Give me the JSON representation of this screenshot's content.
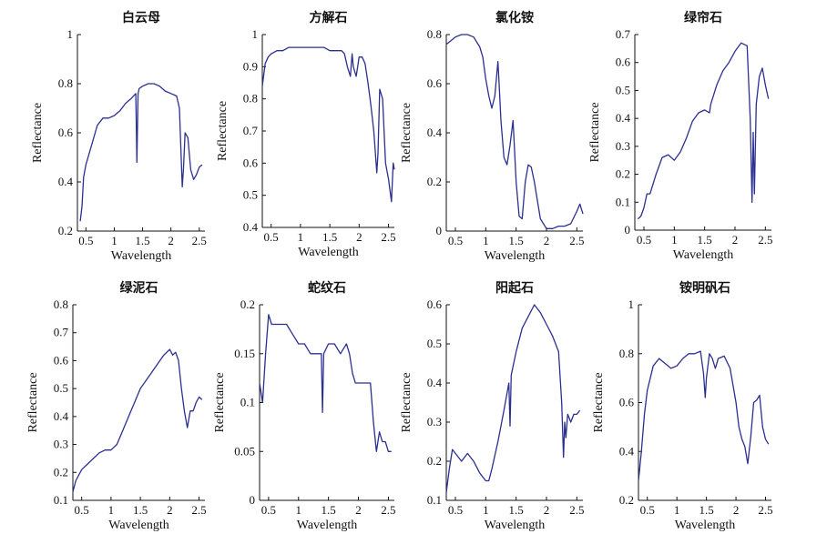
{
  "chart_data": [
    {
      "type": "line",
      "title": "白云母",
      "xlabel": "Wavelength",
      "ylabel": "Reflectance",
      "xlim": [
        0.35,
        2.6
      ],
      "ylim": [
        0.2,
        1
      ],
      "xticks": [
        "0.5",
        "1",
        "1.5",
        "2",
        "2.5"
      ],
      "xtick_values": [
        0.5,
        1,
        1.5,
        2,
        2.5
      ],
      "yticks": [
        "0.2",
        "0.4",
        "0.6",
        "0.8",
        "1"
      ],
      "ytick_values": [
        0.2,
        0.4,
        0.6,
        0.8,
        1
      ],
      "series": [
        {
          "x": [
            0.4,
            0.43,
            0.46,
            0.5,
            0.6,
            0.7,
            0.8,
            0.9,
            1.0,
            1.1,
            1.2,
            1.3,
            1.38,
            1.4,
            1.42,
            1.44,
            1.5,
            1.6,
            1.7,
            1.8,
            1.9,
            2.0,
            2.1,
            2.15,
            2.2,
            2.22,
            2.25,
            2.3,
            2.33,
            2.35,
            2.4,
            2.45,
            2.5,
            2.55
          ],
          "y": [
            0.24,
            0.3,
            0.42,
            0.47,
            0.55,
            0.63,
            0.66,
            0.66,
            0.67,
            0.69,
            0.72,
            0.74,
            0.76,
            0.48,
            0.76,
            0.78,
            0.79,
            0.8,
            0.8,
            0.79,
            0.77,
            0.76,
            0.75,
            0.7,
            0.38,
            0.45,
            0.6,
            0.58,
            0.5,
            0.45,
            0.41,
            0.43,
            0.46,
            0.47
          ]
        }
      ]
    },
    {
      "type": "line",
      "title": "方解石",
      "xlabel": "Wavelength",
      "ylabel": "Reflectance",
      "xlim": [
        0.35,
        2.6
      ],
      "ylim": [
        0.4,
        1
      ],
      "xticks": [
        "0.5",
        "1",
        "1.5",
        "2",
        "2.5"
      ],
      "xtick_values": [
        0.5,
        1,
        1.5,
        2,
        2.5
      ],
      "yticks": [
        "0.4",
        "0.5",
        "0.6",
        "0.7",
        "0.8",
        "0.9",
        "1"
      ],
      "ytick_values": [
        0.4,
        0.5,
        0.6,
        0.7,
        0.8,
        0.9,
        1
      ],
      "series": [
        {
          "x": [
            0.35,
            0.4,
            0.45,
            0.5,
            0.6,
            0.7,
            0.8,
            0.9,
            1.0,
            1.1,
            1.2,
            1.3,
            1.4,
            1.5,
            1.6,
            1.7,
            1.75,
            1.8,
            1.85,
            1.88,
            1.9,
            1.95,
            2.0,
            2.05,
            2.1,
            2.15,
            2.2,
            2.25,
            2.3,
            2.32,
            2.35,
            2.4,
            2.45,
            2.5,
            2.55,
            2.58,
            2.6
          ],
          "y": [
            0.84,
            0.91,
            0.93,
            0.94,
            0.95,
            0.95,
            0.96,
            0.96,
            0.96,
            0.96,
            0.96,
            0.96,
            0.96,
            0.95,
            0.95,
            0.95,
            0.94,
            0.9,
            0.87,
            0.94,
            0.9,
            0.87,
            0.93,
            0.93,
            0.91,
            0.85,
            0.78,
            0.7,
            0.57,
            0.63,
            0.83,
            0.8,
            0.6,
            0.55,
            0.48,
            0.6,
            0.58
          ]
        }
      ]
    },
    {
      "type": "line",
      "title": "氯化铵",
      "xlabel": "Wavelength",
      "ylabel": "Reflectance",
      "xlim": [
        0.35,
        2.6
      ],
      "ylim": [
        0,
        0.8
      ],
      "xticks": [
        "0.5",
        "1",
        "1.5",
        "2",
        "2.5"
      ],
      "xtick_values": [
        0.5,
        1,
        1.5,
        2,
        2.5
      ],
      "yticks": [
        "0",
        "0.2",
        "0.4",
        "0.6",
        "0.8"
      ],
      "ytick_values": [
        0,
        0.2,
        0.4,
        0.6,
        0.8
      ],
      "series": [
        {
          "x": [
            0.35,
            0.4,
            0.5,
            0.6,
            0.7,
            0.8,
            0.9,
            0.95,
            1.0,
            1.05,
            1.1,
            1.15,
            1.2,
            1.22,
            1.25,
            1.3,
            1.35,
            1.4,
            1.45,
            1.5,
            1.55,
            1.6,
            1.65,
            1.7,
            1.75,
            1.8,
            1.9,
            2.0,
            2.1,
            2.2,
            2.3,
            2.4,
            2.5,
            2.55,
            2.6
          ],
          "y": [
            0.76,
            0.77,
            0.79,
            0.8,
            0.8,
            0.79,
            0.75,
            0.71,
            0.62,
            0.55,
            0.5,
            0.55,
            0.69,
            0.6,
            0.45,
            0.3,
            0.27,
            0.35,
            0.45,
            0.2,
            0.06,
            0.05,
            0.2,
            0.27,
            0.26,
            0.2,
            0.05,
            0.01,
            0.01,
            0.02,
            0.02,
            0.03,
            0.08,
            0.11,
            0.07
          ]
        }
      ]
    },
    {
      "type": "line",
      "title": "绿帘石",
      "xlabel": "Wavelength",
      "ylabel": "Reflectance",
      "xlim": [
        0.35,
        2.6
      ],
      "ylim": [
        0,
        0.7
      ],
      "xticks": [
        "0.5",
        "1",
        "1.5",
        "2",
        "2.5"
      ],
      "xtick_values": [
        0.5,
        1,
        1.5,
        2,
        2.5
      ],
      "yticks": [
        "0",
        "0.1",
        "0.2",
        "0.3",
        "0.4",
        "0.5",
        "0.6",
        "0.7"
      ],
      "ytick_values": [
        0,
        0.1,
        0.2,
        0.3,
        0.4,
        0.5,
        0.6,
        0.7
      ],
      "series": [
        {
          "x": [
            0.4,
            0.45,
            0.5,
            0.55,
            0.6,
            0.7,
            0.8,
            0.9,
            1.0,
            1.1,
            1.2,
            1.3,
            1.4,
            1.5,
            1.58,
            1.6,
            1.7,
            1.8,
            1.9,
            2.0,
            2.1,
            2.2,
            2.25,
            2.28,
            2.3,
            2.32,
            2.35,
            2.4,
            2.45,
            2.5,
            2.55
          ],
          "y": [
            0.04,
            0.05,
            0.08,
            0.13,
            0.13,
            0.2,
            0.26,
            0.27,
            0.25,
            0.28,
            0.33,
            0.39,
            0.42,
            0.43,
            0.42,
            0.45,
            0.52,
            0.57,
            0.6,
            0.64,
            0.67,
            0.66,
            0.4,
            0.1,
            0.35,
            0.13,
            0.45,
            0.55,
            0.58,
            0.52,
            0.47
          ]
        }
      ]
    },
    {
      "type": "line",
      "title": "绿泥石",
      "xlabel": "Wavelength",
      "ylabel": "Reflectance",
      "xlim": [
        0.35,
        2.6
      ],
      "ylim": [
        0.1,
        0.8
      ],
      "xticks": [
        "0.5",
        "1",
        "1.5",
        "2",
        "2.5"
      ],
      "xtick_values": [
        0.5,
        1,
        1.5,
        2,
        2.5
      ],
      "yticks": [
        "0.1",
        "0.2",
        "0.3",
        "0.4",
        "0.5",
        "0.6",
        "0.7",
        "0.8"
      ],
      "ytick_values": [
        0.1,
        0.2,
        0.3,
        0.4,
        0.5,
        0.6,
        0.7,
        0.8
      ],
      "series": [
        {
          "x": [
            0.35,
            0.4,
            0.5,
            0.6,
            0.7,
            0.8,
            0.9,
            1.0,
            1.1,
            1.2,
            1.3,
            1.4,
            1.5,
            1.6,
            1.7,
            1.8,
            1.9,
            2.0,
            2.05,
            2.1,
            2.15,
            2.2,
            2.25,
            2.3,
            2.35,
            2.4,
            2.45,
            2.5,
            2.55
          ],
          "y": [
            0.13,
            0.17,
            0.21,
            0.23,
            0.25,
            0.27,
            0.28,
            0.28,
            0.3,
            0.35,
            0.4,
            0.45,
            0.5,
            0.53,
            0.56,
            0.59,
            0.62,
            0.64,
            0.62,
            0.63,
            0.6,
            0.5,
            0.42,
            0.36,
            0.42,
            0.42,
            0.45,
            0.47,
            0.46
          ]
        }
      ]
    },
    {
      "type": "line",
      "title": "蛇纹石",
      "xlabel": "Wavelength",
      "ylabel": "Reflectance",
      "xlim": [
        0.35,
        2.6
      ],
      "ylim": [
        0,
        0.2
      ],
      "xticks": [
        "0.5",
        "1",
        "1.5",
        "2",
        "2.5"
      ],
      "xtick_values": [
        0.5,
        1,
        1.5,
        2,
        2.5
      ],
      "yticks": [
        "0",
        "0.05",
        "0.1",
        "0.15",
        "0.2"
      ],
      "ytick_values": [
        0,
        0.05,
        0.1,
        0.15,
        0.2
      ],
      "series": [
        {
          "x": [
            0.35,
            0.4,
            0.45,
            0.5,
            0.55,
            0.6,
            0.7,
            0.8,
            0.9,
            1.0,
            1.1,
            1.2,
            1.3,
            1.38,
            1.4,
            1.42,
            1.5,
            1.6,
            1.7,
            1.8,
            1.85,
            1.9,
            1.95,
            2.0,
            2.1,
            2.2,
            2.25,
            2.3,
            2.35,
            2.4,
            2.45,
            2.5,
            2.55
          ],
          "y": [
            0.12,
            0.1,
            0.15,
            0.19,
            0.18,
            0.18,
            0.18,
            0.18,
            0.17,
            0.16,
            0.16,
            0.15,
            0.15,
            0.15,
            0.09,
            0.15,
            0.16,
            0.16,
            0.15,
            0.16,
            0.15,
            0.13,
            0.12,
            0.12,
            0.12,
            0.12,
            0.08,
            0.05,
            0.07,
            0.06,
            0.06,
            0.05,
            0.05
          ]
        }
      ]
    },
    {
      "type": "line",
      "title": "阳起石",
      "xlabel": "Wavelength",
      "ylabel": "Reflectance",
      "xlim": [
        0.35,
        2.6
      ],
      "ylim": [
        0.1,
        0.6
      ],
      "xticks": [
        "0.5",
        "1",
        "1.5",
        "2",
        "2.5"
      ],
      "xtick_values": [
        0.5,
        1,
        1.5,
        2,
        2.5
      ],
      "yticks": [
        "0.1",
        "0.2",
        "0.3",
        "0.4",
        "0.5",
        "0.6"
      ],
      "ytick_values": [
        0.1,
        0.2,
        0.3,
        0.4,
        0.5,
        0.6
      ],
      "series": [
        {
          "x": [
            0.35,
            0.4,
            0.45,
            0.5,
            0.6,
            0.7,
            0.8,
            0.9,
            1.0,
            1.05,
            1.1,
            1.2,
            1.3,
            1.38,
            1.4,
            1.42,
            1.5,
            1.6,
            1.7,
            1.8,
            1.9,
            2.0,
            2.1,
            2.2,
            2.25,
            2.28,
            2.3,
            2.32,
            2.35,
            2.4,
            2.45,
            2.5,
            2.55
          ],
          "y": [
            0.12,
            0.18,
            0.23,
            0.22,
            0.2,
            0.22,
            0.2,
            0.17,
            0.15,
            0.15,
            0.18,
            0.25,
            0.33,
            0.4,
            0.29,
            0.42,
            0.48,
            0.54,
            0.57,
            0.6,
            0.58,
            0.55,
            0.52,
            0.48,
            0.35,
            0.21,
            0.3,
            0.26,
            0.32,
            0.3,
            0.32,
            0.32,
            0.33
          ]
        }
      ]
    },
    {
      "type": "line",
      "title": "铵明矾石",
      "xlabel": "Wavelength",
      "ylabel": "Reflectance",
      "xlim": [
        0.35,
        2.6
      ],
      "ylim": [
        0.2,
        1
      ],
      "xticks": [
        "0.5",
        "1",
        "1.5",
        "2",
        "2.5"
      ],
      "xtick_values": [
        0.5,
        1,
        1.5,
        2,
        2.5
      ],
      "yticks": [
        "0.2",
        "0.4",
        "0.6",
        "0.8",
        "1"
      ],
      "ytick_values": [
        0.2,
        0.4,
        0.6,
        0.8,
        1
      ],
      "series": [
        {
          "x": [
            0.35,
            0.4,
            0.45,
            0.5,
            0.6,
            0.7,
            0.8,
            0.9,
            1.0,
            1.1,
            1.2,
            1.3,
            1.4,
            1.45,
            1.48,
            1.5,
            1.55,
            1.6,
            1.65,
            1.7,
            1.8,
            1.9,
            2.0,
            2.05,
            2.1,
            2.15,
            2.2,
            2.25,
            2.3,
            2.35,
            2.4,
            2.45,
            2.5,
            2.55
          ],
          "y": [
            0.28,
            0.4,
            0.55,
            0.65,
            0.75,
            0.78,
            0.76,
            0.74,
            0.75,
            0.78,
            0.8,
            0.8,
            0.81,
            0.72,
            0.62,
            0.7,
            0.8,
            0.78,
            0.74,
            0.78,
            0.79,
            0.74,
            0.6,
            0.5,
            0.45,
            0.42,
            0.35,
            0.46,
            0.6,
            0.61,
            0.63,
            0.5,
            0.45,
            0.43
          ]
        }
      ]
    }
  ]
}
